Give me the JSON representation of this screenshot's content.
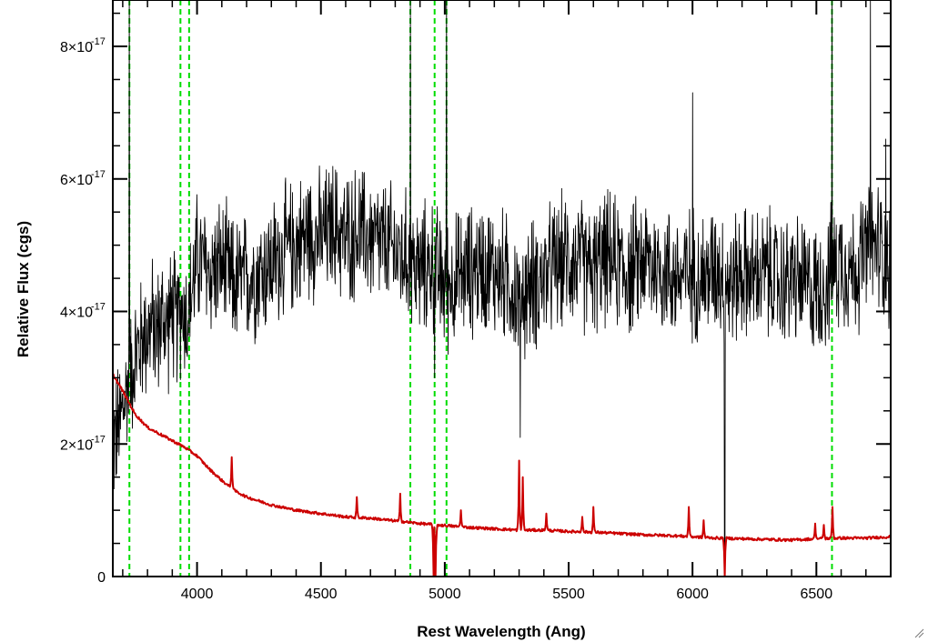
{
  "chart_data": {
    "type": "line",
    "title": "",
    "xlabel": "Rest Wavelength (Ang)",
    "ylabel": "Relative Flux (cgs)",
    "xlim": [
      3660,
      6800
    ],
    "ylim": [
      0,
      8.7e-17
    ],
    "x_ticks": [
      {
        "value": 4000,
        "label": "4000"
      },
      {
        "value": 4500,
        "label": "4500"
      },
      {
        "value": 5000,
        "label": "5000"
      },
      {
        "value": 5500,
        "label": "5500"
      },
      {
        "value": 6000,
        "label": "6000"
      },
      {
        "value": 6500,
        "label": "6500"
      }
    ],
    "y_ticks": [
      {
        "value": 0,
        "mantissa": "0",
        "exponent": ""
      },
      {
        "value": 2e-17,
        "mantissa": "2×10",
        "exponent": "-17"
      },
      {
        "value": 4e-17,
        "mantissa": "4×10",
        "exponent": "-17"
      },
      {
        "value": 6e-17,
        "mantissa": "6×10",
        "exponent": "-17"
      },
      {
        "value": 8e-17,
        "mantissa": "8×10",
        "exponent": "-17"
      }
    ],
    "grid": false,
    "legend": "none",
    "colors": {
      "spectrum": "#000000",
      "model": "#cc0000",
      "lines": "#00dd00"
    },
    "series": [
      {
        "key": "spectrum",
        "color": "#000000",
        "x": [
          3660,
          3680,
          3700,
          3720,
          3740,
          3760,
          3780,
          3800,
          3820,
          3840,
          3860,
          3880,
          3900,
          3920,
          3940,
          3960,
          3980,
          4000,
          4050,
          4100,
          4150,
          4200,
          4250,
          4300,
          4350,
          4400,
          4450,
          4500,
          4550,
          4600,
          4650,
          4700,
          4750,
          4800,
          4850,
          4900,
          4950,
          5000,
          5050,
          5100,
          5150,
          5200,
          5250,
          5300,
          5350,
          5400,
          5450,
          5500,
          5550,
          5600,
          5650,
          5700,
          5750,
          5800,
          5850,
          5900,
          5950,
          6000,
          6050,
          6100,
          6150,
          6200,
          6250,
          6300,
          6350,
          6400,
          6450,
          6500,
          6550,
          6600,
          6650,
          6700,
          6750,
          6800
        ],
        "y": [
          2e-17,
          2.2e-17,
          2.5e-17,
          2.9e-17,
          3.2e-17,
          3.4e-17,
          3.6e-17,
          3.7e-17,
          3.8e-17,
          3.7e-17,
          3.9e-17,
          3.8e-17,
          4e-17,
          3.8e-17,
          4.1e-17,
          3.9e-17,
          4.3e-17,
          4.8e-17,
          4.6e-17,
          4.7e-17,
          4.4e-17,
          4.5e-17,
          4.6e-17,
          4.7e-17,
          4.9e-17,
          5e-17,
          5.2e-17,
          5.1e-17,
          5.3e-17,
          5.1e-17,
          5.2e-17,
          5.1e-17,
          5e-17,
          4.9e-17,
          4.8e-17,
          4.6e-17,
          4.7e-17,
          4.4e-17,
          4.5e-17,
          4.6e-17,
          4.7e-17,
          4.6e-17,
          4.5e-17,
          4.2e-17,
          4.4e-17,
          4.5e-17,
          4.7e-17,
          4.8e-17,
          4.7e-17,
          4.6e-17,
          4.8e-17,
          4.7e-17,
          4.6e-17,
          4.8e-17,
          4.7e-17,
          4.6e-17,
          4.5e-17,
          4.6e-17,
          4.5e-17,
          4.7e-17,
          4.4e-17,
          4.6e-17,
          4.5e-17,
          4.6e-17,
          4.4e-17,
          4.5e-17,
          4.4e-17,
          4.3e-17,
          4.5e-17,
          4.8e-17,
          4.6e-17,
          4.9e-17,
          5e-17,
          4.7e-17
        ],
        "noise": 1e-17,
        "spikes": [
          {
            "x": 3727,
            "y": 8.7e-17
          },
          {
            "x": 4861,
            "y": 8.7e-17
          },
          {
            "x": 4959,
            "y": 3e-17
          },
          {
            "x": 5007,
            "y": 8.7e-17
          },
          {
            "x": 5305,
            "y": 2.1e-17
          },
          {
            "x": 6000,
            "y": 7.3e-17
          },
          {
            "x": 6130,
            "y": 0
          },
          {
            "x": 6563,
            "y": 8.7e-17
          },
          {
            "x": 6718,
            "y": 8.7e-17
          },
          {
            "x": 6780,
            "y": 6.6e-17
          }
        ]
      },
      {
        "key": "model",
        "color": "#cc0000",
        "x": [
          3660,
          3700,
          3750,
          3800,
          3850,
          3900,
          3950,
          4000,
          4050,
          4100,
          4150,
          4200,
          4300,
          4400,
          4500,
          4600,
          4700,
          4800,
          4900,
          5000,
          5100,
          5200,
          5300,
          5400,
          5500,
          5600,
          5700,
          5800,
          5900,
          6000,
          6100,
          6200,
          6300,
          6400,
          6500,
          6600,
          6700,
          6800
        ],
        "y": [
          3.05e-17,
          2.8e-17,
          2.45e-17,
          2.25e-17,
          2.15e-17,
          2.05e-17,
          1.95e-17,
          1.82e-17,
          1.62e-17,
          1.45e-17,
          1.3e-17,
          1.2e-17,
          1.08e-17,
          1e-17,
          9.5e-18,
          9e-18,
          8.8e-18,
          8.4e-18,
          8e-18,
          7.7e-18,
          7.4e-18,
          7.2e-18,
          7e-18,
          7e-18,
          6.8e-18,
          6.7e-18,
          6.5e-18,
          6.3e-18,
          6.2e-18,
          6e-18,
          5.8e-18,
          5.7e-18,
          5.6e-18,
          5.5e-18,
          5.7e-18,
          5.8e-18,
          5.8e-18,
          6e-18
        ],
        "peaks": [
          {
            "x": 4140,
            "y": 1.8e-17
          },
          {
            "x": 4645,
            "y": 1.2e-17
          },
          {
            "x": 4820,
            "y": 1.25e-17
          },
          {
            "x": 5065,
            "y": 1e-17
          },
          {
            "x": 5300,
            "y": 1.75e-17
          },
          {
            "x": 5315,
            "y": 1.5e-17
          },
          {
            "x": 5410,
            "y": 9.5e-18
          },
          {
            "x": 5555,
            "y": 9e-18
          },
          {
            "x": 5600,
            "y": 1.05e-17
          },
          {
            "x": 5985,
            "y": 1.05e-17
          },
          {
            "x": 6045,
            "y": 8.5e-18
          },
          {
            "x": 6130,
            "y": 8.5e-18
          },
          {
            "x": 6495,
            "y": 8e-18
          },
          {
            "x": 6530,
            "y": 7.8e-18
          },
          {
            "x": 6565,
            "y": 1.05e-17
          }
        ],
        "dips": [
          {
            "x": 4955,
            "y": 0
          },
          {
            "x": 4963,
            "y": 0
          },
          {
            "x": 6130,
            "y": 0
          }
        ]
      }
    ],
    "reference_lines": [
      3727,
      3933,
      3968,
      4861,
      4959,
      5007,
      6563
    ]
  }
}
